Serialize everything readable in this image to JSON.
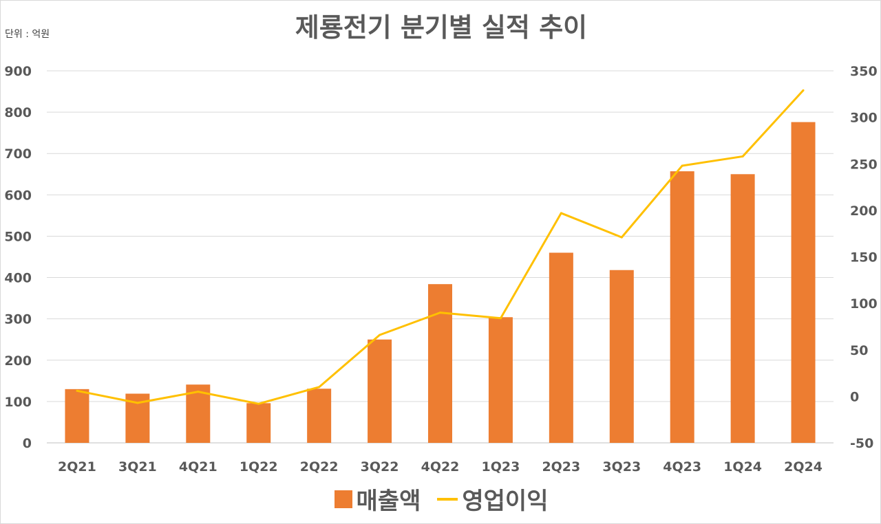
{
  "chart_data": {
    "type": "bar",
    "title": "제룡전기 분기별 실적 추이",
    "unit_label": "단위 : 억원",
    "categories": [
      "2Q21",
      "3Q21",
      "4Q21",
      "1Q22",
      "2Q22",
      "3Q22",
      "4Q22",
      "1Q23",
      "2Q23",
      "3Q23",
      "4Q23",
      "1Q24",
      "2Q24"
    ],
    "series": [
      {
        "name": "매출액",
        "type": "bar",
        "axis": "left",
        "color": "#ed7d31",
        "values": [
          130,
          119,
          141,
          96,
          131,
          250,
          384,
          304,
          460,
          418,
          657,
          650,
          776
        ]
      },
      {
        "name": "영업이익",
        "type": "line",
        "axis": "right",
        "color": "#ffc000",
        "values": [
          6,
          -7,
          5,
          -8,
          10,
          66,
          90,
          84,
          197,
          171,
          248,
          258,
          329
        ]
      }
    ],
    "y_left": {
      "min": 0,
      "max": 900,
      "ticks": [
        0,
        100,
        200,
        300,
        400,
        500,
        600,
        700,
        800,
        900
      ]
    },
    "y_right": {
      "min": -50,
      "max": 350,
      "ticks": [
        -50,
        0,
        50,
        100,
        150,
        200,
        250,
        300,
        350
      ]
    },
    "grid": true,
    "legend_position": "bottom"
  }
}
